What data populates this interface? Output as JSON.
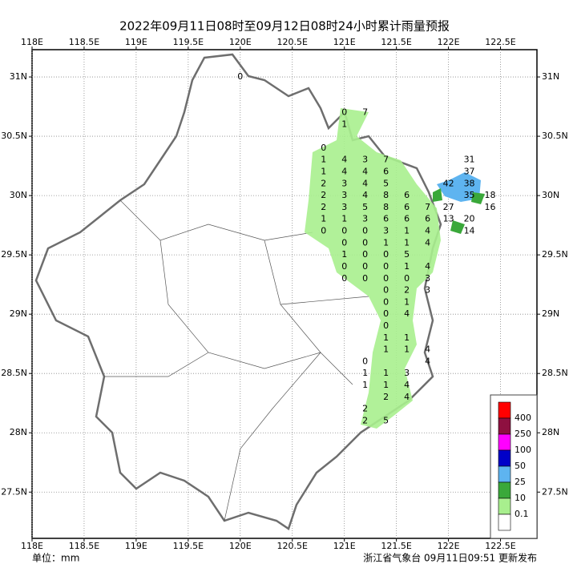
{
  "map": {
    "title": "2022年09月11日08时至09月12日08时24小时累计雨量预报",
    "unit": "单位：mm",
    "issuer": "浙江省气象台 09月11日09:51 更新发布",
    "xlim": [
      118,
      122.85
    ],
    "ylim": [
      27.11,
      31.23
    ],
    "xticks": [
      {
        "value": 118,
        "label": "118E"
      },
      {
        "value": 118.5,
        "label": "118.5E"
      },
      {
        "value": 119,
        "label": "119E"
      },
      {
        "value": 119.5,
        "label": "119.5E"
      },
      {
        "value": 120,
        "label": "120E"
      },
      {
        "value": 120.5,
        "label": "120.5E"
      },
      {
        "value": 121,
        "label": "121E"
      },
      {
        "value": 121.5,
        "label": "121.5E"
      },
      {
        "value": 122,
        "label": "122E"
      },
      {
        "value": 122.5,
        "label": "122.5E"
      }
    ],
    "yticks": [
      {
        "value": 31,
        "label": "31N"
      },
      {
        "value": 30.5,
        "label": "30.5N"
      },
      {
        "value": 30,
        "label": "30N"
      },
      {
        "value": 29.5,
        "label": "29.5N"
      },
      {
        "value": 29,
        "label": "29N"
      },
      {
        "value": 28.5,
        "label": "28.5N"
      },
      {
        "value": 28,
        "label": "28N"
      },
      {
        "value": 27.5,
        "label": "27.5N"
      }
    ],
    "grid": true,
    "legend": {
      "colors": [
        "#ff0000",
        "#8e1040",
        "#ff00ff",
        "#0000c8",
        "#5eb4f0",
        "#3aa83a",
        "#a8ef8e",
        "#ffffff"
      ],
      "labels": [
        "400",
        "250",
        "100",
        "50",
        "25",
        "10",
        "0.1"
      ]
    },
    "stations": {
      "lon": [
        120,
        121,
        121.2,
        121,
        120.8,
        120.8,
        121,
        121.2,
        121.4,
        120.8,
        121,
        121.2,
        121.4,
        120.8,
        121,
        121.2,
        121.4,
        120.8,
        121,
        121.2,
        121.4,
        121.6,
        120.8,
        121,
        121.2,
        121.4,
        121.6,
        121.8,
        120.8,
        121,
        121.2,
        121.4,
        121.6,
        121.8,
        120.8,
        121,
        121.2,
        121.4,
        121.6,
        121.8,
        121,
        121.2,
        121.4,
        121.6,
        121.8,
        121,
        121.2,
        121.4,
        121.6,
        121,
        121.2,
        121.4,
        121.6,
        121.8,
        121,
        121.2,
        121.4,
        121.6,
        121.8,
        121.4,
        121.6,
        121.8,
        121.4,
        121.6,
        121.4,
        121.6,
        121.4,
        121.4,
        121.6,
        121.4,
        121.6,
        121.8,
        121.2,
        121.8,
        121.2,
        121.4,
        121.6,
        121.2,
        121.4,
        121.6,
        121.4,
        121.6,
        121.2,
        121.2,
        121.4,
        122.2,
        122.2,
        122,
        122.2,
        122.2,
        122.4,
        122,
        122.4,
        122,
        122.2,
        122.2
      ],
      "lat": [
        31,
        30.7,
        30.7,
        30.6,
        30.4,
        30.3,
        30.3,
        30.3,
        30.3,
        30.2,
        30.2,
        30.2,
        30.2,
        30.1,
        30.1,
        30.1,
        30.1,
        30,
        30,
        30,
        30,
        30,
        29.9,
        29.9,
        29.9,
        29.9,
        29.9,
        29.9,
        29.8,
        29.8,
        29.8,
        29.8,
        29.8,
        29.8,
        29.7,
        29.7,
        29.7,
        29.7,
        29.7,
        29.7,
        29.6,
        29.6,
        29.6,
        29.6,
        29.6,
        29.5,
        29.5,
        29.5,
        29.5,
        29.4,
        29.4,
        29.4,
        29.4,
        29.4,
        29.3,
        29.3,
        29.3,
        29.3,
        29.3,
        29.2,
        29.2,
        29.2,
        29.1,
        29.1,
        29,
        29,
        28.9,
        28.8,
        28.8,
        28.7,
        28.7,
        28.7,
        28.6,
        28.6,
        28.5,
        28.5,
        28.5,
        28.4,
        28.4,
        28.4,
        28.3,
        28.3,
        28.2,
        28.1,
        28.1,
        30.3,
        30.2,
        30.1,
        30.1,
        30,
        30,
        29.9,
        29.9,
        29.8,
        29.8,
        29.7
      ],
      "values": [
        0,
        0,
        7,
        1,
        0,
        1,
        4,
        3,
        7,
        1,
        4,
        4,
        6,
        2,
        3,
        4,
        5,
        2,
        3,
        4,
        8,
        6,
        2,
        3,
        5,
        8,
        6,
        7,
        1,
        1,
        3,
        6,
        6,
        6,
        0,
        0,
        0,
        3,
        1,
        4,
        0,
        0,
        1,
        1,
        4,
        1,
        0,
        0,
        5,
        0,
        0,
        0,
        1,
        4,
        0,
        0,
        0,
        0,
        3,
        0,
        2,
        3,
        0,
        1,
        0,
        4,
        0,
        1,
        1,
        1,
        1,
        4,
        0,
        4,
        1,
        1,
        3,
        1,
        1,
        4,
        2,
        4,
        2,
        2,
        5,
        31,
        37,
        42,
        38,
        35,
        18,
        27,
        16,
        13,
        20,
        14
      ]
    }
  }
}
